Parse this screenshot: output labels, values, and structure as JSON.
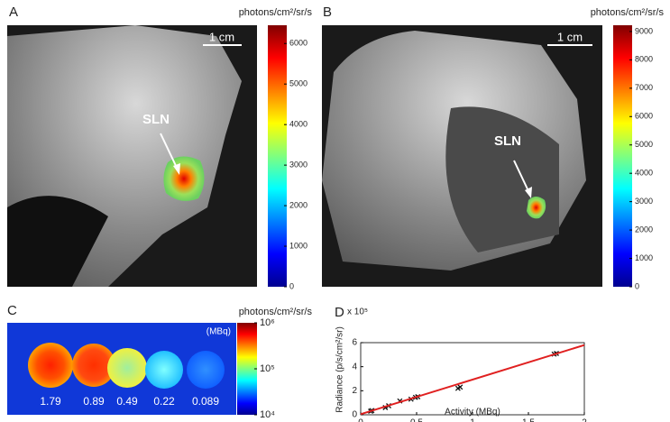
{
  "panels": [
    {
      "label": "A",
      "colorbar": {
        "title": "photons/cm²/sr/s",
        "lim": [
          0,
          6450
        ],
        "ticks": [
          0,
          1000,
          2000,
          3000,
          4000,
          5000,
          6000
        ],
        "log": false
      },
      "scale_bar": "1 cm",
      "annotation": "SLN"
    },
    {
      "label": "B",
      "colorbar": {
        "title": "photons/cm²/sr/s",
        "lim": [
          0,
          9220
        ],
        "ticks": [
          0,
          1000,
          2000,
          3000,
          4000,
          5000,
          6000,
          7000,
          8000,
          9000
        ],
        "log": false
      },
      "scale_bar": "1 cm",
      "annotation": "SLN"
    },
    {
      "label": "C",
      "colorbar": {
        "title": "photons/cm²/sr/s",
        "lim": [
          10000,
          1000000
        ],
        "log": true,
        "ticks": [
          {
            "value": 10000,
            "label": "10⁴"
          },
          {
            "value": 100000,
            "label": "10⁵"
          },
          {
            "value": 1000000,
            "label": "10⁶"
          }
        ]
      },
      "unit_note": "(MBq)",
      "activities": [
        1.79,
        0.89,
        0.49,
        0.22,
        0.089
      ]
    }
  ],
  "chart_data": {
    "type": "scatter",
    "label": "D",
    "x_label": "Activity (MBq)",
    "y_label": "Radiance (p/s/cm²/sr)",
    "y_multiplier": "x 10⁵",
    "xlim": [
      0,
      2
    ],
    "ylim": [
      0,
      6
    ],
    "xticks": [
      0,
      0.5,
      1,
      1.5,
      2
    ],
    "yticks": [
      0,
      2,
      4,
      6
    ],
    "series": [
      {
        "style": "markers",
        "color": "#111111",
        "x": [
          0.089,
          0.1,
          0.22,
          0.25,
          0.35,
          0.45,
          0.49,
          0.51,
          0.87,
          0.89,
          1.73,
          1.75
        ],
        "values": [
          0.3,
          0.35,
          0.6,
          0.75,
          1.15,
          1.3,
          1.45,
          1.5,
          2.2,
          2.3,
          5.05,
          5.1
        ]
      },
      {
        "style": "line",
        "color": "#e02020",
        "x": [
          0,
          2
        ],
        "values": [
          0.05,
          5.8
        ]
      }
    ]
  }
}
